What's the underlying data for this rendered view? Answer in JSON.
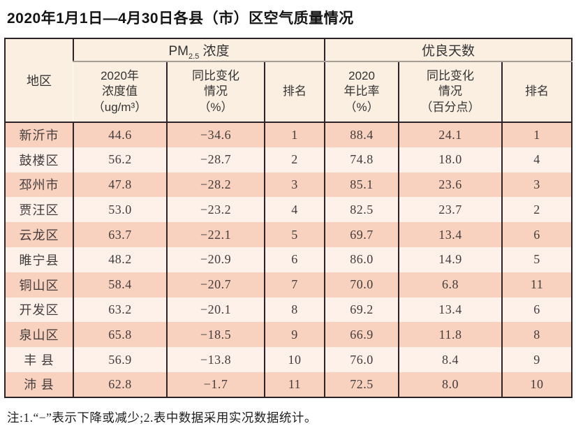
{
  "title": "2020年1月1日—4月30日各县（市）区空气质量情况",
  "note": "注:1.“−”表示下降或减少;2.表中数据采用实况数据统计。",
  "colors": {
    "row_odd": "#f8d2bf",
    "row_even": "#fdf1ea",
    "header_bg": "#fbefe2",
    "border_dark": "#2c2428",
    "border_gray": "#a59e96",
    "text_dark": "#433c3c"
  },
  "table": {
    "region_header": "地区",
    "pm25_group": {
      "prefix": "PM",
      "sub": "2.5",
      "suffix": " 浓度"
    },
    "good_days_group": "优良天数",
    "subheaders": {
      "pm25_value": "2020年\n浓度值\n（ug/m³）",
      "pm25_change": "同比变化\n情况\n（%）",
      "pm25_rank": "排名",
      "good_rate": "2020\n年比率\n（%）",
      "good_change": "同比变化\n情况\n（百分点）",
      "good_rank": "排名"
    }
  },
  "chart_data": {
    "type": "table",
    "title": "2020年1月1日—4月30日各县（市）区空气质量情况",
    "columns": [
      "地区",
      "PM2.5浓度 2020年浓度值（ug/m³）",
      "PM2.5浓度 同比变化情况（%）",
      "PM2.5浓度 排名",
      "优良天数 2020年比率（%）",
      "优良天数 同比变化情况（百分点）",
      "优良天数 排名"
    ],
    "rows": [
      [
        "新沂市",
        "44.6",
        "−34.6",
        "1",
        "88.4",
        "24.1",
        "1"
      ],
      [
        "鼓楼区",
        "56.2",
        "−28.7",
        "2",
        "74.8",
        "18.0",
        "4"
      ],
      [
        "邳州市",
        "47.8",
        "−28.2",
        "3",
        "85.1",
        "23.6",
        "3"
      ],
      [
        "贾汪区",
        "53.0",
        "−23.2",
        "4",
        "82.5",
        "23.7",
        "2"
      ],
      [
        "云龙区",
        "63.7",
        "−22.1",
        "5",
        "69.7",
        "13.4",
        "6"
      ],
      [
        "睢宁县",
        "48.2",
        "−20.9",
        "6",
        "86.0",
        "14.9",
        "5"
      ],
      [
        "铜山区",
        "58.4",
        "−20.7",
        "7",
        "70.0",
        "6.8",
        "11"
      ],
      [
        "开发区",
        "63.2",
        "−20.1",
        "8",
        "69.2",
        "13.4",
        "6"
      ],
      [
        "泉山区",
        "65.8",
        "−18.5",
        "9",
        "66.9",
        "11.8",
        "8"
      ],
      [
        "丰 县",
        "56.9",
        "−13.8",
        "10",
        "76.0",
        "8.4",
        "9"
      ],
      [
        "沛 县",
        "62.8",
        "−1.7",
        "11",
        "72.5",
        "8.0",
        "10"
      ]
    ]
  }
}
